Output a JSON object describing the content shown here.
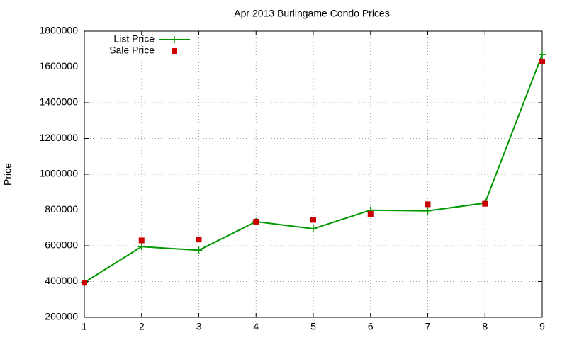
{
  "chart_data": {
    "type": "line",
    "title": "Apr 2013 Burlingame Condo Prices",
    "y_label": "Price",
    "x": [
      1,
      2,
      3,
      4,
      5,
      6,
      7,
      8,
      9
    ],
    "series": [
      {
        "name": "List Price",
        "color": "#009900",
        "style": "linespoints",
        "values": [
          395000,
          595000,
          575000,
          735000,
          695000,
          799000,
          795000,
          839000,
          1670000
        ]
      },
      {
        "name": "Sale Price",
        "color": "#cc0000",
        "style": "points",
        "values": [
          393000,
          630000,
          635000,
          735000,
          745000,
          778000,
          832000,
          835000,
          1630000
        ]
      }
    ],
    "xlim": [
      1,
      9
    ],
    "xticks": [
      1,
      2,
      3,
      4,
      5,
      6,
      7,
      8,
      9
    ],
    "ylim": [
      200000,
      1800000
    ],
    "yticks": [
      200000,
      400000,
      600000,
      800000,
      1000000,
      1200000,
      1400000,
      1600000,
      1800000
    ],
    "grid": true,
    "legend": "top-left"
  }
}
